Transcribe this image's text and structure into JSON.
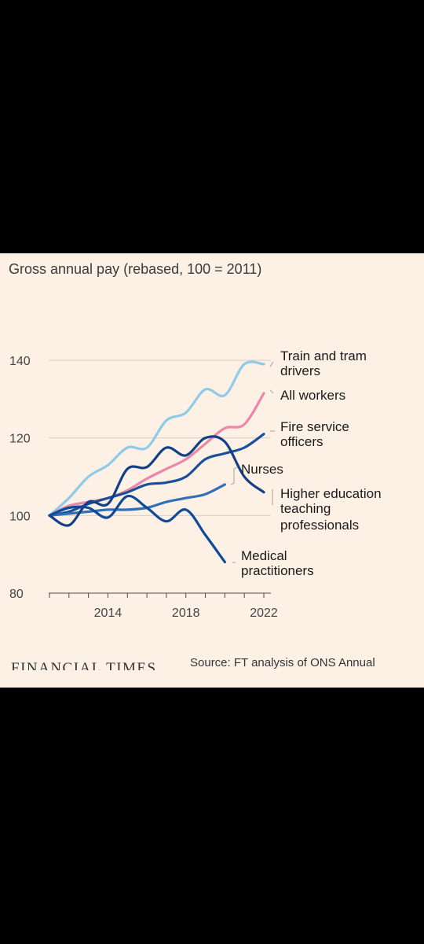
{
  "chart_data": {
    "type": "line",
    "title": "Gross annual pay (rebased, 100 = 2011)",
    "xlim": [
      2011,
      2022
    ],
    "ylim": [
      80,
      140
    ],
    "yticks": [
      80,
      100,
      120,
      140
    ],
    "xticks": [
      2011,
      2012,
      2013,
      2014,
      2015,
      2016,
      2017,
      2018,
      2019,
      2020,
      2021,
      2022
    ],
    "xtick_labels": [
      {
        "x": 2014,
        "label": "2014"
      },
      {
        "x": 2018,
        "label": "2018"
      },
      {
        "x": 2022,
        "label": "2022"
      }
    ],
    "grid": true,
    "series": [
      {
        "name": "Train and tram drivers",
        "color": "#8fcbe6",
        "x": [
          2011,
          2012,
          2013,
          2014,
          2015,
          2016,
          2017,
          2018,
          2019,
          2020,
          2021,
          2022
        ],
        "y": [
          100,
          104.5,
          110,
          113,
          117.5,
          117.5,
          124.5,
          126.5,
          132.5,
          131,
          139,
          139
        ]
      },
      {
        "name": "All workers",
        "color": "#ec87a8",
        "x": [
          2011,
          2012,
          2013,
          2014,
          2015,
          2016,
          2017,
          2018,
          2019,
          2020,
          2021,
          2022
        ],
        "y": [
          100,
          102.5,
          103.5,
          104.5,
          106.5,
          109.5,
          112,
          114.5,
          118.5,
          122.5,
          123.5,
          131.5
        ]
      },
      {
        "name": "Fire service officers",
        "color": "#1a4f9c",
        "x": [
          2011,
          2012,
          2013,
          2014,
          2015,
          2016,
          2017,
          2018,
          2019,
          2020,
          2021,
          2022
        ],
        "y": [
          100,
          101,
          103,
          104.5,
          106,
          108,
          108.5,
          110,
          114.5,
          116,
          117.5,
          121
        ]
      },
      {
        "name": "Nurses",
        "color": "#2f70b7",
        "x": [
          2011,
          2012,
          2013,
          2014,
          2015,
          2016,
          2017,
          2018,
          2019,
          2020
        ],
        "y": [
          100,
          100.5,
          101,
          101.5,
          101.5,
          102,
          103.5,
          104.5,
          105.5,
          108
        ]
      },
      {
        "name": "Higher education teaching professionals",
        "color": "#123f86",
        "x": [
          2011,
          2012,
          2013,
          2014,
          2015,
          2016,
          2017,
          2018,
          2019,
          2020,
          2021,
          2022
        ],
        "y": [
          100,
          97.5,
          103.5,
          103,
          112,
          112.5,
          117.5,
          115.5,
          120,
          119,
          110,
          106
        ]
      },
      {
        "name": "Medical practitioners",
        "color": "#0d4a9a",
        "x": [
          2011,
          2012,
          2013,
          2014,
          2015,
          2016,
          2017,
          2018,
          2019,
          2020
        ],
        "y": [
          100,
          102,
          102,
          99.5,
          105,
          102,
          98.5,
          101.5,
          95,
          88
        ]
      }
    ]
  },
  "labels": {
    "train_line1": "Train and tram",
    "train_line2": "drivers",
    "all_workers": "All workers",
    "fire_line1": "Fire service",
    "fire_line2": "officers",
    "nurses": "Nurses",
    "he_line1": "Higher education",
    "he_line2": "teaching",
    "he_line3": "professionals",
    "med_line1": "Medical",
    "med_line2": "practitioners"
  },
  "footer": {
    "logo": "FINANCIAL TIMES",
    "source": "Source: FT analysis of ONS Annual"
  }
}
